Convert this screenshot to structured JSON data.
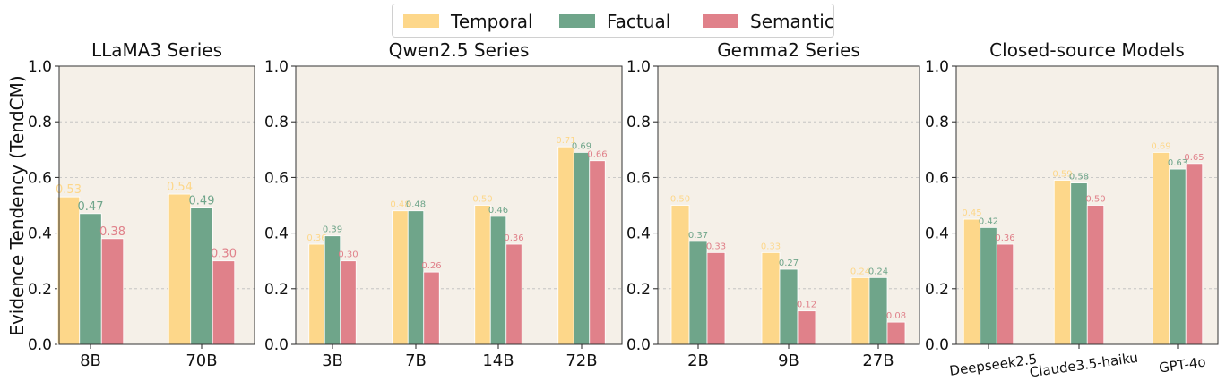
{
  "legend": [
    {
      "name": "Temporal",
      "color": "#fdd78a"
    },
    {
      "name": "Factual",
      "color": "#6fa58a"
    },
    {
      "name": "Semantic",
      "color": "#e0818a"
    }
  ],
  "ylabel": "Evidence Tendency (TendCM)",
  "chart_data": [
    {
      "type": "bar",
      "title": "LLaMA3 Series",
      "categories": [
        "8B",
        "70B"
      ],
      "series": [
        {
          "name": "Temporal",
          "values": [
            0.53,
            0.54
          ]
        },
        {
          "name": "Factual",
          "values": [
            0.47,
            0.49
          ]
        },
        {
          "name": "Semantic",
          "values": [
            0.38,
            0.3
          ]
        }
      ],
      "ylim": [
        0,
        1.0
      ],
      "yticks": [
        "0.0",
        "0.2",
        "0.4",
        "0.6",
        "0.8",
        "1.0"
      ],
      "grid": true
    },
    {
      "type": "bar",
      "title": "Qwen2.5 Series",
      "categories": [
        "3B",
        "7B",
        "14B",
        "72B"
      ],
      "series": [
        {
          "name": "Temporal",
          "values": [
            0.36,
            0.48,
            0.5,
            0.71
          ]
        },
        {
          "name": "Factual",
          "values": [
            0.39,
            0.48,
            0.46,
            0.69
          ]
        },
        {
          "name": "Semantic",
          "values": [
            0.3,
            0.26,
            0.36,
            0.66
          ]
        }
      ],
      "ylim": [
        0,
        1.0
      ],
      "yticks": [
        "0.0",
        "0.2",
        "0.4",
        "0.6",
        "0.8",
        "1.0"
      ],
      "grid": true
    },
    {
      "type": "bar",
      "title": "Gemma2 Series",
      "categories": [
        "2B",
        "9B",
        "27B"
      ],
      "series": [
        {
          "name": "Temporal",
          "values": [
            0.5,
            0.33,
            0.24
          ]
        },
        {
          "name": "Factual",
          "values": [
            0.37,
            0.27,
            0.24
          ]
        },
        {
          "name": "Semantic",
          "values": [
            0.33,
            0.12,
            0.08
          ]
        }
      ],
      "ylim": [
        0,
        1.0
      ],
      "yticks": [
        "0.0",
        "0.2",
        "0.4",
        "0.6",
        "0.8",
        "1.0"
      ],
      "grid": true
    },
    {
      "type": "bar",
      "title": "Closed-source Models",
      "categories": [
        "Deepseek2.5",
        "Claude3.5-haiku",
        "GPT-4o"
      ],
      "series": [
        {
          "name": "Temporal",
          "values": [
            0.45,
            0.59,
            0.69
          ]
        },
        {
          "name": "Factual",
          "values": [
            0.42,
            0.58,
            0.63
          ]
        },
        {
          "name": "Semantic",
          "values": [
            0.36,
            0.5,
            0.65
          ]
        }
      ],
      "ylim": [
        0,
        1.0
      ],
      "yticks": [
        "0.0",
        "0.2",
        "0.4",
        "0.6",
        "0.8",
        "1.0"
      ],
      "grid": true
    }
  ]
}
